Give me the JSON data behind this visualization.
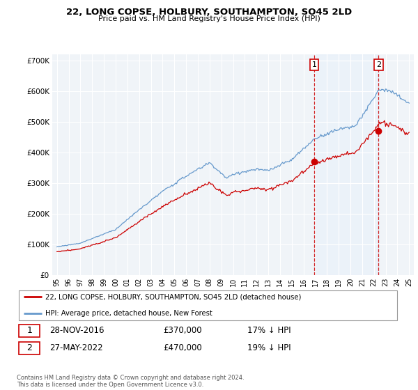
{
  "title": "22, LONG COPSE, HOLBURY, SOUTHAMPTON, SO45 2LD",
  "subtitle": "Price paid vs. HM Land Registry's House Price Index (HPI)",
  "legend_line1": "22, LONG COPSE, HOLBURY, SOUTHAMPTON, SO45 2LD (detached house)",
  "legend_line2": "HPI: Average price, detached house, New Forest",
  "annotation1_date": "28-NOV-2016",
  "annotation1_price": 370000,
  "annotation1_price_str": "£370,000",
  "annotation1_note": "17% ↓ HPI",
  "annotation1_year": 2016.91,
  "annotation2_date": "27-MAY-2022",
  "annotation2_price": 470000,
  "annotation2_price_str": "£470,000",
  "annotation2_note": "19% ↓ HPI",
  "annotation2_year": 2022.4,
  "footnote": "Contains HM Land Registry data © Crown copyright and database right 2024.\nThis data is licensed under the Open Government Licence v3.0.",
  "hpi_color": "#6699cc",
  "hpi_fill_color": "#ddeeff",
  "price_color": "#cc0000",
  "vline_color": "#cc0000",
  "shade_color": "#ddeeff",
  "ylim": [
    0,
    720000
  ],
  "yticks": [
    0,
    100000,
    200000,
    300000,
    400000,
    500000,
    600000,
    700000
  ],
  "ytick_labels": [
    "£0",
    "£100K",
    "£200K",
    "£300K",
    "£400K",
    "£500K",
    "£600K",
    "£700K"
  ],
  "xlim_left": 1994.6,
  "xlim_right": 2025.4,
  "background_color": "#ffffff",
  "plot_bg_color": "#f0f4f8"
}
